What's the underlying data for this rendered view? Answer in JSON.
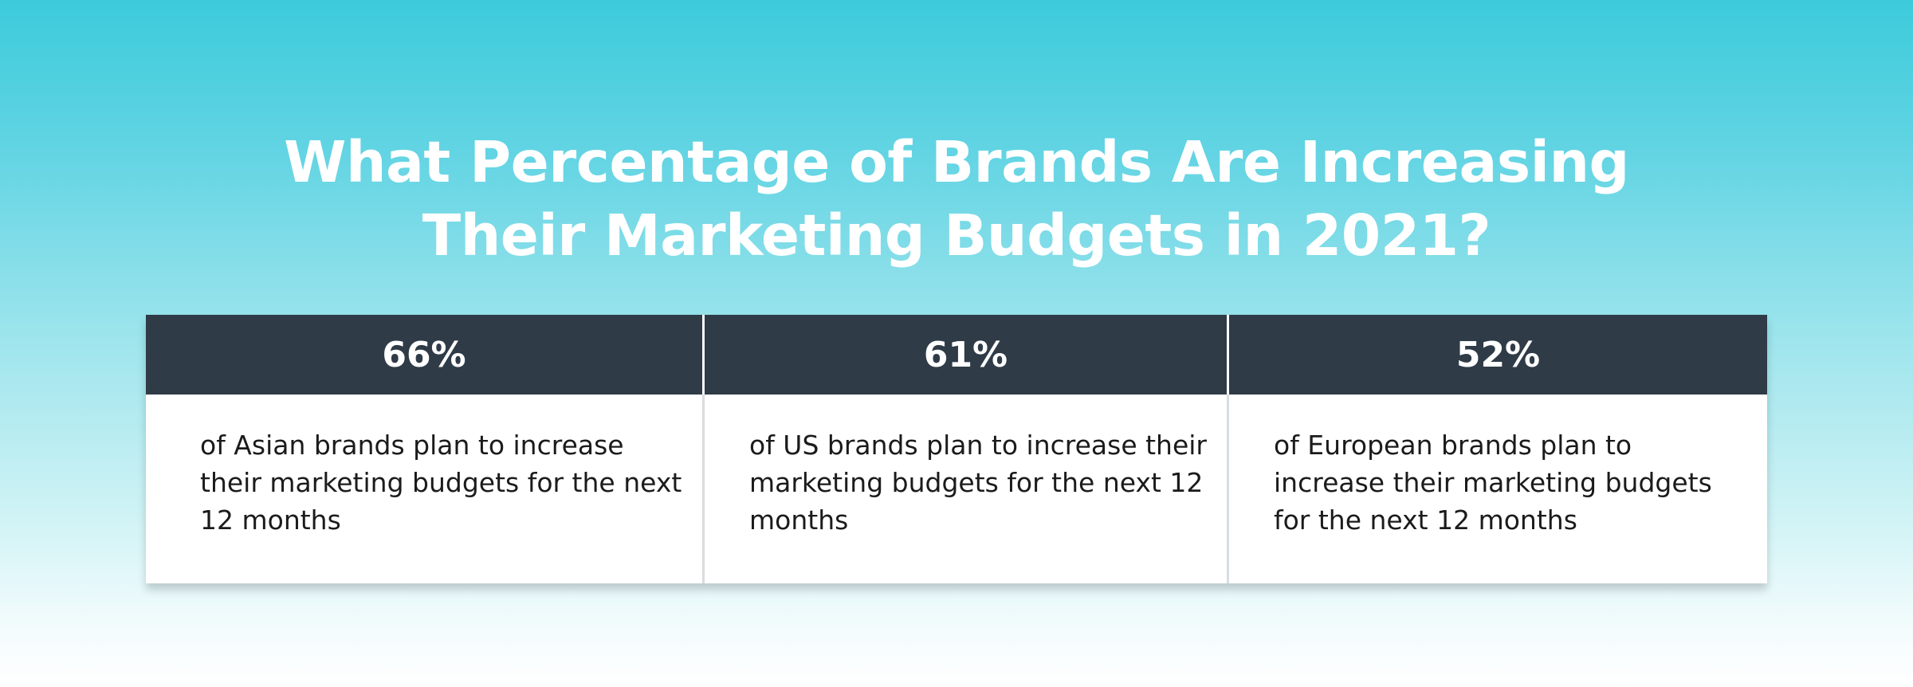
{
  "title": {
    "line1": "What Percentage of Brands Are Increasing",
    "line2": "Their Marketing Budgets in 2021?"
  },
  "stats": [
    {
      "percent": "66%",
      "description": "of Asian brands plan to increase their marketing budgets for the next 12 months"
    },
    {
      "percent": "61%",
      "description": "of US brands plan to increase their marketing budgets for the next 12 months"
    },
    {
      "percent": "52%",
      "description": "of European brands plan to increase their marketing budgets for the next 12 months"
    }
  ],
  "colors": {
    "gradient_top": "#3ccbdb",
    "gradient_bottom": "#ffffff",
    "header_bg": "#2f3b47",
    "title_text": "#ffffff"
  }
}
